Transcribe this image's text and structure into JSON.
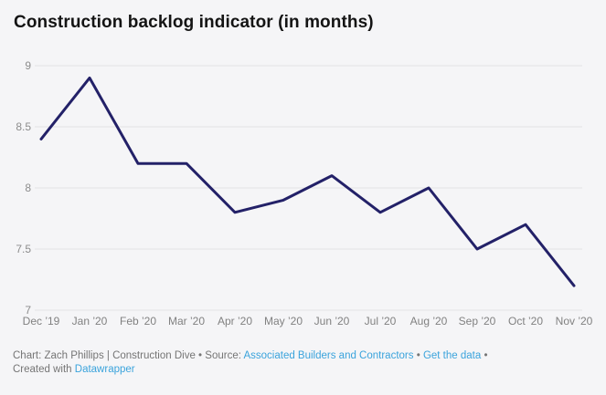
{
  "title": "Construction backlog indicator (in months)",
  "chart_data": {
    "type": "line",
    "title": "Construction backlog indicator (in months)",
    "categories": [
      "Dec ’19",
      "Jan ’20",
      "Feb ’20",
      "Mar ’20",
      "Apr ’20",
      "May ’20",
      "Jun ’20",
      "Jul ’20",
      "Aug ’20",
      "Sep ’20",
      "Oct ’20",
      "Nov ’20"
    ],
    "values": [
      8.4,
      8.9,
      8.2,
      8.2,
      7.8,
      7.9,
      8.1,
      7.8,
      8.0,
      7.5,
      7.7,
      7.2
    ],
    "yticks": [
      7,
      7.5,
      8,
      8.5,
      9
    ],
    "ylim": [
      7,
      9.2
    ],
    "xlabel": "",
    "ylabel": "",
    "grid": true,
    "legend": false,
    "line_color": "#232168"
  },
  "footer": {
    "credit": "Chart: Zach Phillips | Construction Dive",
    "sep": "•",
    "source_label": "Source:",
    "source_link": "Associated Builders and Contractors",
    "data_link": "Get the data",
    "created_label": "Created with",
    "created_link": "Datawrapper",
    "link_color": "#3aa3dc"
  }
}
